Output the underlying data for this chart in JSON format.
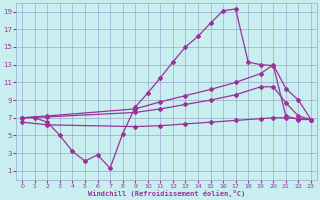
{
  "xlabel": "Windchill (Refroidissement éolien,°C)",
  "bg_color": "#c8eef0",
  "grid_color": "#99aacc",
  "line_color": "#993399",
  "xlim": [
    -0.5,
    23.5
  ],
  "ylim": [
    0,
    20
  ],
  "yticks": [
    1,
    3,
    5,
    7,
    9,
    11,
    13,
    15,
    17,
    19
  ],
  "xticks": [
    0,
    1,
    2,
    3,
    4,
    5,
    6,
    7,
    8,
    9,
    10,
    11,
    12,
    13,
    14,
    15,
    16,
    17,
    18,
    19,
    20,
    21,
    22,
    23
  ],
  "line1_x": [
    0,
    1,
    2,
    3,
    4,
    5,
    6,
    7,
    8,
    9,
    10,
    11,
    12,
    13,
    14,
    15,
    16,
    17,
    18,
    19,
    20,
    21,
    22,
    23
  ],
  "line1_y": [
    7,
    7,
    6.5,
    5,
    3.2,
    2.1,
    2.8,
    1.3,
    5.2,
    8.2,
    9.8,
    11.5,
    13.3,
    15,
    16.2,
    17.7,
    19.1,
    19.3,
    13.3,
    13.0,
    12.9,
    7.2,
    6.8,
    6.8
  ],
  "line2_x": [
    0,
    2,
    9,
    11,
    13,
    15,
    17,
    19,
    20,
    21,
    22,
    23
  ],
  "line2_y": [
    7,
    7.2,
    8.0,
    8.8,
    9.5,
    10.2,
    11.0,
    12.0,
    13.0,
    10.3,
    9.0,
    6.8
  ],
  "line3_x": [
    0,
    2,
    9,
    11,
    13,
    15,
    17,
    19,
    20,
    21,
    22,
    23
  ],
  "line3_y": [
    7,
    7.1,
    7.6,
    8.0,
    8.5,
    9.0,
    9.6,
    10.5,
    10.5,
    8.7,
    7.2,
    6.8
  ],
  "line4_x": [
    0,
    2,
    9,
    11,
    13,
    15,
    17,
    19,
    20,
    21,
    22,
    23
  ],
  "line4_y": [
    6.5,
    6.2,
    6.0,
    6.1,
    6.3,
    6.5,
    6.7,
    6.9,
    7.0,
    7.0,
    6.9,
    6.8
  ]
}
